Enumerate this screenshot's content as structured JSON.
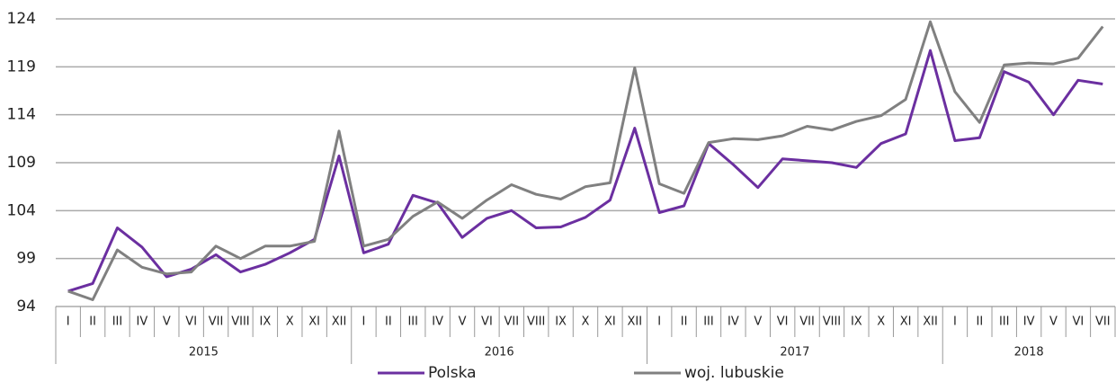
{
  "chart_data": {
    "type": "line",
    "categories": [
      "I",
      "II",
      "III",
      "IV",
      "V",
      "VI",
      "VII",
      "VIII",
      "IX",
      "X",
      "XI",
      "XII",
      "I",
      "II",
      "III",
      "IV",
      "V",
      "VI",
      "VII",
      "VIII",
      "IX",
      "X",
      "XI",
      "XII",
      "I",
      "II",
      "III",
      "IV",
      "V",
      "VI",
      "VII",
      "VIII",
      "IX",
      "X",
      "XI",
      "XII",
      "I",
      "II",
      "III",
      "IV",
      "V",
      "VI",
      "VII"
    ],
    "years": [
      "2015",
      "2016",
      "2017",
      "2018"
    ],
    "series": [
      {
        "name": "Polska",
        "color": "#6b2fa0",
        "values": [
          95.6,
          96.4,
          102.2,
          100.2,
          97.1,
          97.9,
          99.4,
          97.6,
          98.4,
          99.6,
          101.0,
          109.7,
          99.6,
          100.5,
          105.6,
          104.8,
          101.2,
          103.2,
          104.0,
          102.2,
          102.3,
          103.3,
          105.1,
          112.6,
          103.8,
          104.5,
          111.0,
          108.8,
          106.4,
          109.4,
          109.2,
          109.0,
          108.5,
          111.0,
          112.0,
          120.7,
          111.3,
          111.6,
          118.5,
          117.4,
          114.0,
          117.6,
          117.2
        ]
      },
      {
        "name": "woj. lubuskie",
        "color": "#808080",
        "values": [
          95.6,
          94.7,
          99.9,
          98.1,
          97.4,
          97.6,
          100.3,
          99.0,
          100.3,
          100.3,
          100.8,
          112.3,
          100.3,
          101.0,
          103.4,
          104.9,
          103.2,
          105.1,
          106.7,
          105.7,
          105.2,
          106.5,
          106.9,
          118.9,
          106.8,
          105.8,
          111.1,
          111.5,
          111.4,
          111.8,
          112.8,
          112.4,
          113.3,
          113.9,
          115.6,
          123.7,
          116.4,
          113.2,
          119.2,
          119.4,
          119.3,
          119.9,
          123.2
        ]
      }
    ],
    "ylim": [
      94,
      124
    ],
    "yticks": [
      94,
      99,
      104,
      109,
      114,
      119,
      124
    ],
    "grid": true,
    "legend": "bottom"
  }
}
